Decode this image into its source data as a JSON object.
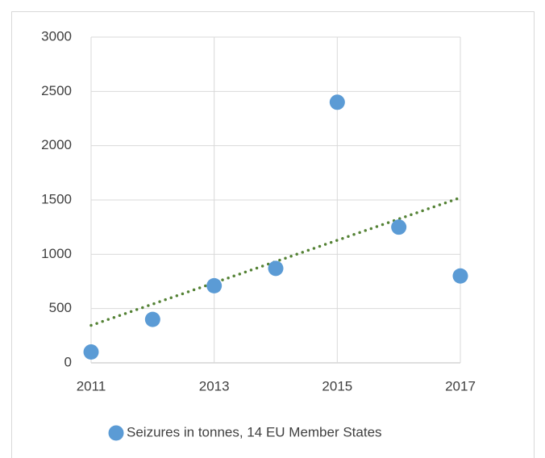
{
  "chart_data": {
    "type": "scatter",
    "series": [
      {
        "name": "Seizures in tonnes, 14 EU Member States",
        "color": "#5b9bd5",
        "x": [
          2011,
          2012,
          2013,
          2014,
          2015,
          2016,
          2017
        ],
        "values": [
          100,
          400,
          710,
          870,
          2400,
          1250,
          800
        ]
      }
    ],
    "trendline": {
      "x": [
        2011,
        2017
      ],
      "values": [
        345,
        1521
      ],
      "color": "#548235"
    },
    "xlim": [
      2011,
      2017
    ],
    "xticks": [
      2011,
      2013,
      2015,
      2017
    ],
    "ylim": [
      0,
      3000
    ],
    "yticks": [
      0,
      500,
      1000,
      1500,
      2000,
      2500,
      3000
    ],
    "grid": true,
    "legend": "bottom"
  }
}
